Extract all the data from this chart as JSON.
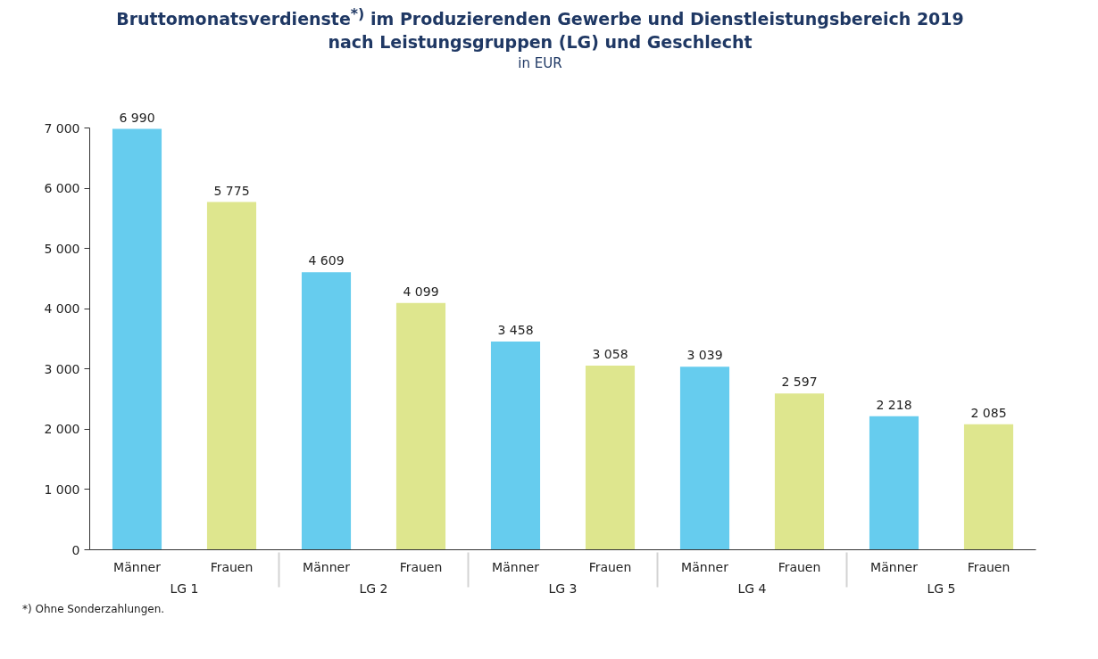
{
  "chart_data": {
    "type": "bar",
    "title": "Bruttomonatsverdienste$^{*)}$ im Produzierenden Gewerbe und Dienstleistungsbereich 2019 nach Leistungsgruppen (LG) und Geschlecht",
    "subtitle": "in EUR",
    "categories": [
      "LG 1",
      "LG 2",
      "LG 3",
      "LG 4",
      "LG 5"
    ],
    "series": [
      {
        "name": "Männer",
        "color": "#66ccee",
        "values": [
          6990,
          4609,
          3458,
          3039,
          2218
        ],
        "value_labels": [
          "6 990",
          "4 609",
          "3 458",
          "3 039",
          "2 218"
        ]
      },
      {
        "name": "Frauen",
        "color": "#dee68e",
        "values": [
          5775,
          4099,
          3058,
          2597,
          2085
        ],
        "value_labels": [
          "5 775",
          "4 099",
          "3 058",
          "2 597",
          "2 085"
        ]
      }
    ],
    "ylim": [
      0,
      7000
    ],
    "yticks": [
      {
        "value": 0,
        "label": "0"
      },
      {
        "value": 1000,
        "label": "1 000"
      },
      {
        "value": 2000,
        "label": "2 000"
      },
      {
        "value": 3000,
        "label": "3 000"
      },
      {
        "value": 4000,
        "label": "4 000"
      },
      {
        "value": 5000,
        "label": "5 000"
      },
      {
        "value": 6000,
        "label": "6 000"
      },
      {
        "value": 7000,
        "label": "7 000"
      }
    ],
    "grid": false,
    "annotations": [
      "*) Ohne Sonderzahlungen."
    ]
  }
}
